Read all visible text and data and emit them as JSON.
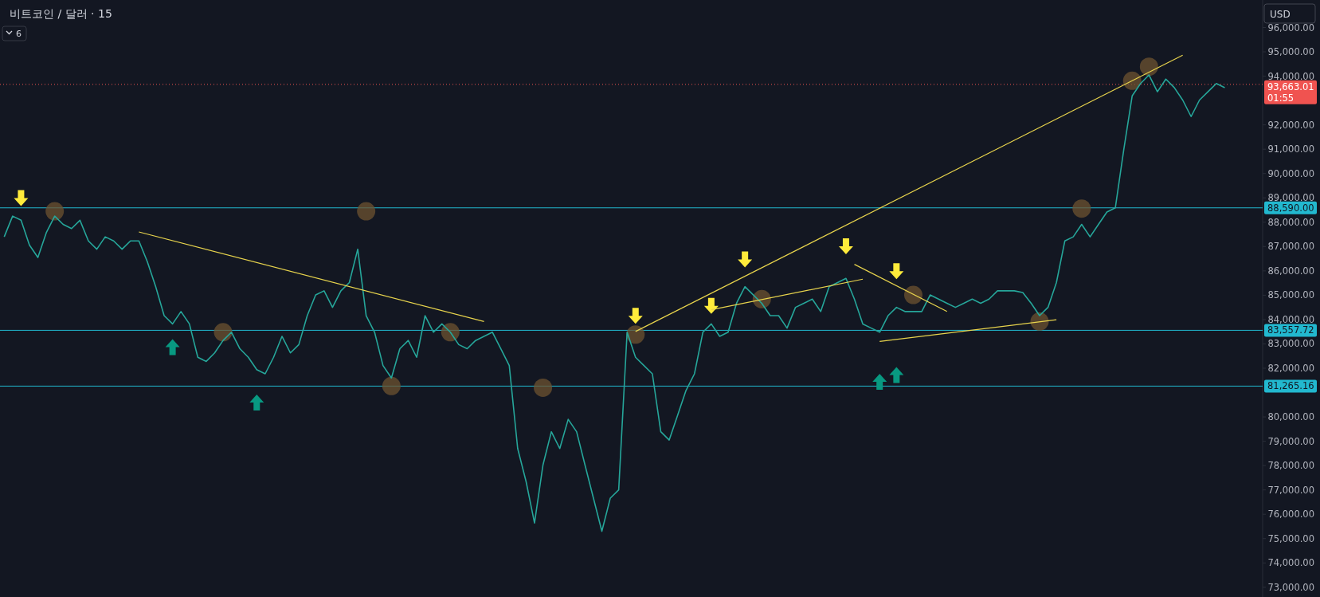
{
  "chart_data": {
    "type": "line",
    "title": "비트코인 / 달러 · 15",
    "annotations": [
      "6",
      "USD"
    ],
    "categories": [
      null,
      null,
      null,
      null,
      null,
      null,
      null,
      null,
      null,
      null,
      null,
      null,
      null,
      null,
      null,
      null,
      null,
      null,
      null,
      null,
      null,
      null,
      null,
      null,
      null,
      null,
      null,
      null,
      null,
      null,
      null,
      null,
      null,
      null,
      null,
      null,
      null,
      null,
      null,
      null,
      null,
      null,
      null,
      null,
      null,
      null,
      null,
      null,
      null,
      null,
      null,
      null,
      null,
      null,
      null,
      null,
      null,
      null,
      null,
      null,
      null,
      null,
      null,
      null,
      null,
      null,
      null,
      null,
      null,
      null,
      null,
      null,
      null,
      null,
      null,
      null,
      null,
      null,
      null,
      null,
      null,
      null,
      null,
      null,
      null,
      null,
      null,
      null,
      null,
      null,
      null,
      null,
      null,
      null,
      null,
      null,
      null,
      null,
      null,
      null,
      null,
      null,
      null,
      null,
      null,
      null,
      null,
      null,
      null,
      null,
      null,
      null,
      null,
      null,
      null,
      null,
      null,
      null,
      null,
      null,
      null,
      null,
      null,
      null,
      null,
      null,
      null,
      null,
      null,
      null,
      null,
      null,
      null,
      null,
      null,
      null,
      null,
      null,
      null,
      null,
      null,
      null,
      null,
      null,
      null,
      null
    ],
    "series": [
      {
        "color": "#26a69a",
        "values": [
          87400,
          88250,
          88080,
          87060,
          86550,
          87570,
          88250,
          87910,
          87740,
          88080,
          87230,
          86890,
          87400,
          87230,
          86890,
          87230,
          87230,
          86380,
          85350,
          84160,
          83820,
          84330,
          83820,
          82450,
          82280,
          82630,
          83140,
          83480,
          82800,
          82450,
          81940,
          81770,
          82450,
          83310,
          82630,
          82970,
          84160,
          85010,
          85180,
          84500,
          85180,
          85520,
          86890,
          84160,
          83480,
          82110,
          81600,
          82800,
          83140,
          82450,
          84160,
          83480,
          83820,
          83480,
          82970,
          82800,
          83140,
          83310,
          83480,
          82800,
          82110,
          78700,
          77340,
          75640,
          78020,
          79390,
          78700,
          79900,
          79390,
          78020,
          76660,
          75300,
          76660,
          77000,
          83480,
          82450,
          82110,
          81770,
          79390,
          79050,
          80070,
          81090,
          81770,
          83480,
          83820,
          83310,
          83480,
          84670,
          85350,
          85010,
          84670,
          84160,
          84160,
          83650,
          84500,
          84670,
          84840,
          84330,
          85350,
          85520,
          85690,
          84840,
          83820,
          83650,
          83480,
          84160,
          84500,
          84330,
          84330,
          84330,
          85010,
          84840,
          84670,
          84500,
          84670,
          84840,
          84670,
          84840,
          85180,
          85180,
          85180,
          85110,
          84670,
          84160,
          84500,
          85520,
          87230,
          87400,
          87910,
          87400,
          87910,
          88420,
          88590,
          90980,
          93190,
          93700,
          94050,
          93360,
          93880,
          93530,
          93020,
          92340,
          93020,
          93360,
          93700,
          93530
        ]
      },
      {
        "type": "line",
        "color": "#e8d44d",
        "values": [
          null,
          null,
          null,
          null,
          null,
          null,
          null,
          null,
          null,
          null,
          null,
          null,
          null,
          null,
          null,
          null,
          87600,
          null,
          null,
          null,
          null,
          null,
          null,
          null,
          null,
          null,
          null,
          null,
          null,
          null,
          null,
          null,
          null,
          null,
          null,
          null,
          null,
          null,
          null,
          null,
          null,
          null,
          null,
          null,
          null,
          null,
          null,
          null,
          null,
          null,
          null,
          null,
          null,
          null,
          null,
          null,
          null,
          83920,
          null,
          null,
          null,
          null,
          null,
          null,
          null,
          null,
          null,
          null,
          null,
          null,
          null,
          null,
          null,
          null,
          null,
          null,
          null,
          null,
          null,
          null,
          null,
          null,
          null,
          null,
          null,
          null,
          null,
          null,
          null,
          null,
          null,
          null,
          null,
          null,
          null,
          null,
          null,
          null,
          null,
          null,
          null,
          null,
          null,
          null,
          null,
          null,
          null,
          null,
          null,
          null,
          null,
          null,
          null,
          null,
          null,
          null,
          null,
          null,
          null,
          null,
          null,
          null,
          null,
          null,
          null,
          null,
          null,
          null,
          null,
          null,
          null,
          null,
          null,
          null,
          null,
          null,
          null,
          null,
          null,
          null,
          null,
          null,
          null,
          null,
          null,
          null
        ]
      },
      {
        "type": "line",
        "color": "#e8d44d",
        "values": [
          null,
          null,
          null,
          null,
          null,
          null,
          null,
          null,
          null,
          null,
          null,
          null,
          null,
          null,
          null,
          null,
          null,
          null,
          null,
          null,
          null,
          null,
          null,
          null,
          null,
          null,
          null,
          null,
          null,
          null,
          null,
          null,
          null,
          null,
          null,
          null,
          null,
          null,
          null,
          null,
          null,
          null,
          null,
          null,
          null,
          null,
          null,
          null,
          null,
          null,
          null,
          null,
          null,
          null,
          null,
          null,
          null,
          null,
          null,
          null,
          null,
          null,
          null,
          null,
          null,
          null,
          null,
          null,
          null,
          null,
          null,
          null,
          null,
          null,
          null,
          83510,
          null,
          null,
          null,
          null,
          null,
          null,
          null,
          null,
          null,
          null,
          null,
          null,
          null,
          null,
          null,
          null,
          null,
          null,
          null,
          null,
          null,
          null,
          null,
          null,
          null,
          null,
          null,
          null,
          null,
          null,
          null,
          null,
          null,
          null,
          null,
          null,
          null,
          null,
          null,
          null,
          null,
          null,
          null,
          null,
          null,
          null,
          null,
          null,
          null,
          null,
          null,
          null,
          null,
          null,
          null,
          null,
          null,
          null,
          null,
          null,
          null,
          null,
          null,
          null,
          94860,
          null,
          null,
          null,
          null,
          null
        ]
      },
      {
        "type": "line",
        "color": "#e8d44d",
        "values": [
          null,
          null,
          null,
          null,
          null,
          null,
          null,
          null,
          null,
          null,
          null,
          null,
          null,
          null,
          null,
          null,
          null,
          null,
          null,
          null,
          null,
          null,
          null,
          null,
          null,
          null,
          null,
          null,
          null,
          null,
          null,
          null,
          null,
          null,
          null,
          null,
          null,
          null,
          null,
          null,
          null,
          null,
          null,
          null,
          null,
          null,
          null,
          null,
          null,
          null,
          null,
          null,
          null,
          null,
          null,
          null,
          null,
          null,
          null,
          null,
          null,
          null,
          null,
          null,
          null,
          null,
          null,
          null,
          null,
          null,
          null,
          null,
          null,
          null,
          null,
          null,
          null,
          null,
          null,
          null,
          null,
          null,
          null,
          null,
          84400,
          null,
          null,
          null,
          null,
          null,
          null,
          null,
          null,
          null,
          null,
          null,
          null,
          null,
          null,
          null,
          null,
          null,
          85660,
          null,
          null,
          null,
          null,
          null,
          null,
          null,
          null,
          null,
          null,
          null,
          null,
          null,
          null,
          null,
          null,
          null,
          null,
          null,
          null,
          null,
          null,
          null,
          null,
          null,
          null,
          null,
          null,
          null,
          null,
          null,
          null,
          null,
          null,
          null,
          null,
          null,
          null,
          null,
          null,
          null,
          null,
          null
        ]
      },
      {
        "type": "line",
        "color": "#e8d44d",
        "values": [
          null,
          null,
          null,
          null,
          null,
          null,
          null,
          null,
          null,
          null,
          null,
          null,
          null,
          null,
          null,
          null,
          null,
          null,
          null,
          null,
          null,
          null,
          null,
          null,
          null,
          null,
          null,
          null,
          null,
          null,
          null,
          null,
          null,
          null,
          null,
          null,
          null,
          null,
          null,
          null,
          null,
          null,
          null,
          null,
          null,
          null,
          null,
          null,
          null,
          null,
          null,
          null,
          null,
          null,
          null,
          null,
          null,
          null,
          null,
          null,
          null,
          null,
          null,
          null,
          null,
          null,
          null,
          null,
          null,
          null,
          null,
          null,
          null,
          null,
          null,
          null,
          null,
          null,
          null,
          null,
          null,
          null,
          null,
          null,
          null,
          null,
          null,
          null,
          null,
          null,
          null,
          null,
          null,
          null,
          null,
          null,
          null,
          null,
          null,
          null,
          null,
          86270,
          null,
          null,
          null,
          null,
          null,
          null,
          null,
          null,
          null,
          null,
          84330,
          null,
          null,
          null,
          null,
          null,
          null,
          null,
          null,
          null,
          null,
          null,
          null,
          null,
          null,
          null,
          null,
          null,
          null,
          null,
          null,
          null,
          null,
          null,
          null,
          null,
          null,
          null,
          null,
          null,
          null,
          null,
          null,
          null
        ]
      },
      {
        "type": "line",
        "color": "#e8d44d",
        "values": [
          null,
          null,
          null,
          null,
          null,
          null,
          null,
          null,
          null,
          null,
          null,
          null,
          null,
          null,
          null,
          null,
          null,
          null,
          null,
          null,
          null,
          null,
          null,
          null,
          null,
          null,
          null,
          null,
          null,
          null,
          null,
          null,
          null,
          null,
          null,
          null,
          null,
          null,
          null,
          null,
          null,
          null,
          null,
          null,
          null,
          null,
          null,
          null,
          null,
          null,
          null,
          null,
          null,
          null,
          null,
          null,
          null,
          null,
          null,
          null,
          null,
          null,
          null,
          null,
          null,
          null,
          null,
          null,
          null,
          null,
          null,
          null,
          null,
          null,
          null,
          null,
          null,
          null,
          null,
          null,
          null,
          null,
          null,
          null,
          null,
          null,
          null,
          null,
          null,
          null,
          null,
          null,
          null,
          null,
          null,
          null,
          null,
          null,
          null,
          null,
          null,
          null,
          null,
          null,
          83100,
          null,
          null,
          null,
          null,
          null,
          null,
          null,
          null,
          null,
          null,
          null,
          null,
          null,
          null,
          null,
          null,
          null,
          null,
          null,
          null,
          83990,
          null,
          null,
          null,
          null,
          null,
          null,
          null,
          null,
          null,
          null,
          null,
          null,
          null,
          null,
          null,
          null,
          null,
          null,
          null,
          null
        ]
      },
      {
        "type": "scatter",
        "marker": "circle",
        "color": "#6e5330",
        "values": [
          null,
          null,
          null,
          null,
          null,
          null,
          88450,
          null,
          null,
          null,
          null,
          null,
          null,
          null,
          null,
          null,
          null,
          null,
          null,
          null,
          null,
          null,
          null,
          null,
          null,
          null,
          83480,
          null,
          null,
          null,
          null,
          null,
          null,
          null,
          null,
          null,
          null,
          null,
          null,
          null,
          null,
          null,
          null,
          88450,
          null,
          null,
          81270,
          null,
          null,
          null,
          null,
          null,
          null,
          83480,
          null,
          null,
          null,
          null,
          null,
          null,
          null,
          null,
          null,
          null,
          81200,
          null,
          null,
          null,
          null,
          null,
          null,
          null,
          null,
          null,
          null,
          83380,
          null,
          null,
          null,
          null,
          null,
          null,
          null,
          null,
          null,
          null,
          null,
          null,
          null,
          null,
          84840,
          null,
          null,
          null,
          null,
          null,
          null,
          null,
          null,
          null,
          null,
          null,
          null,
          null,
          null,
          null,
          null,
          null,
          85010,
          null,
          null,
          null,
          null,
          null,
          null,
          null,
          null,
          null,
          null,
          null,
          null,
          null,
          null,
          83920,
          null,
          null,
          null,
          null,
          88560,
          null,
          null,
          null,
          null,
          null,
          93810,
          null,
          94390,
          null,
          null,
          null,
          null,
          null,
          null,
          null,
          null,
          null
        ]
      },
      {
        "type": "scatter",
        "marker": "triangle",
        "color": "#ffeb3b",
        "values": [
          null,
          null,
          88990,
          null,
          null,
          null,
          null,
          null,
          null,
          null,
          null,
          null,
          null,
          null,
          null,
          null,
          null,
          null,
          null,
          null,
          null,
          null,
          null,
          null,
          null,
          null,
          null,
          null,
          null,
          null,
          null,
          null,
          null,
          null,
          null,
          null,
          null,
          null,
          null,
          null,
          null,
          null,
          null,
          null,
          null,
          null,
          null,
          null,
          null,
          null,
          null,
          null,
          null,
          null,
          null,
          null,
          null,
          null,
          null,
          null,
          null,
          null,
          null,
          null,
          null,
          null,
          null,
          null,
          null,
          null,
          null,
          null,
          null,
          null,
          null,
          84150,
          null,
          null,
          null,
          null,
          null,
          null,
          null,
          null,
          84560,
          null,
          null,
          null,
          86470,
          null,
          null,
          null,
          null,
          null,
          null,
          null,
          null,
          null,
          null,
          null,
          87010,
          null,
          null,
          null,
          null,
          null,
          85990,
          null,
          null,
          null,
          null,
          null,
          null,
          null,
          null,
          null,
          null,
          null,
          null,
          null,
          null,
          null,
          null,
          null,
          null,
          null,
          null,
          null,
          null,
          null,
          null,
          null,
          null,
          null,
          null,
          null,
          null,
          null,
          null,
          null,
          null,
          null,
          null,
          null,
          null,
          null
        ]
      },
      {
        "type": "scatter",
        "marker": "triangle",
        "color": "#089981",
        "values": [
          null,
          null,
          null,
          null,
          null,
          null,
          null,
          null,
          null,
          null,
          null,
          null,
          null,
          null,
          null,
          null,
          null,
          null,
          null,
          null,
          82870,
          null,
          null,
          null,
          null,
          null,
          null,
          null,
          null,
          null,
          80590,
          null,
          null,
          null,
          null,
          null,
          null,
          null,
          null,
          null,
          null,
          null,
          null,
          null,
          null,
          null,
          null,
          null,
          null,
          null,
          null,
          null,
          null,
          null,
          null,
          null,
          null,
          null,
          null,
          null,
          null,
          null,
          null,
          null,
          null,
          null,
          null,
          null,
          null,
          null,
          null,
          null,
          null,
          null,
          null,
          null,
          null,
          null,
          null,
          null,
          null,
          null,
          null,
          null,
          null,
          null,
          null,
          null,
          null,
          null,
          null,
          null,
          null,
          null,
          null,
          null,
          null,
          null,
          null,
          null,
          null,
          null,
          null,
          null,
          81440,
          null,
          81720,
          null,
          null,
          null,
          null,
          null,
          null,
          null,
          null,
          null,
          null,
          null,
          null,
          null,
          null,
          null,
          null,
          null,
          null,
          null,
          null,
          null,
          null,
          null,
          null,
          null,
          null,
          null,
          null,
          null,
          null,
          null,
          null,
          null,
          null,
          null,
          null,
          null,
          null,
          null
        ]
      }
    ],
    "ylim": [
      72600,
      97130
    ],
    "yticks": [
      {
        "value": 73000,
        "label": "73,000.00"
      },
      {
        "value": 74000,
        "label": "74,000.00"
      },
      {
        "value": 75000,
        "label": "75,000.00"
      },
      {
        "value": 76000,
        "label": "76,000.00"
      },
      {
        "value": 77000,
        "label": "77,000.00"
      },
      {
        "value": 78000,
        "label": "78,000.00"
      },
      {
        "value": 79000,
        "label": "79,000.00"
      },
      {
        "value": 80000,
        "label": "80,000.00"
      },
      {
        "value": 82000,
        "label": "82,000.00"
      },
      {
        "value": 83000,
        "label": "83,000.00"
      },
      {
        "value": 84000,
        "label": "84,000.00"
      },
      {
        "value": 85000,
        "label": "85,000.00"
      },
      {
        "value": 86000,
        "label": "86,000.00"
      },
      {
        "value": 87000,
        "label": "87,000.00"
      },
      {
        "value": 88000,
        "label": "88,000.00"
      },
      {
        "value": 89000,
        "label": "89,000.00"
      },
      {
        "value": 90000,
        "label": "90,000.00"
      },
      {
        "value": 91000,
        "label": "91,000.00"
      },
      {
        "value": 92000,
        "label": "92,000.00"
      },
      {
        "value": 94000,
        "label": "94,000.00"
      },
      {
        "value": 95000,
        "label": "95,000.00"
      },
      {
        "value": 96000,
        "label": "96,000.00"
      }
    ],
    "ref_lines": [
      {
        "axis": "y",
        "value": 88590,
        "label": "88,590.00",
        "color": "#22b8cf",
        "line_style": "solid"
      },
      {
        "axis": "y",
        "value": 83557.72,
        "label": "83,557.72",
        "color": "#22b8cf",
        "line_style": "solid"
      },
      {
        "axis": "y",
        "value": 81265.16,
        "label": "81,265.16",
        "color": "#22b8cf",
        "line_style": "solid"
      },
      {
        "axis": "y",
        "value": 93663.01,
        "label": "93,663.01\n01:55",
        "color": "#f05350",
        "line_style": "dotted"
      }
    ],
    "tick_labels": "y",
    "grid": false
  }
}
